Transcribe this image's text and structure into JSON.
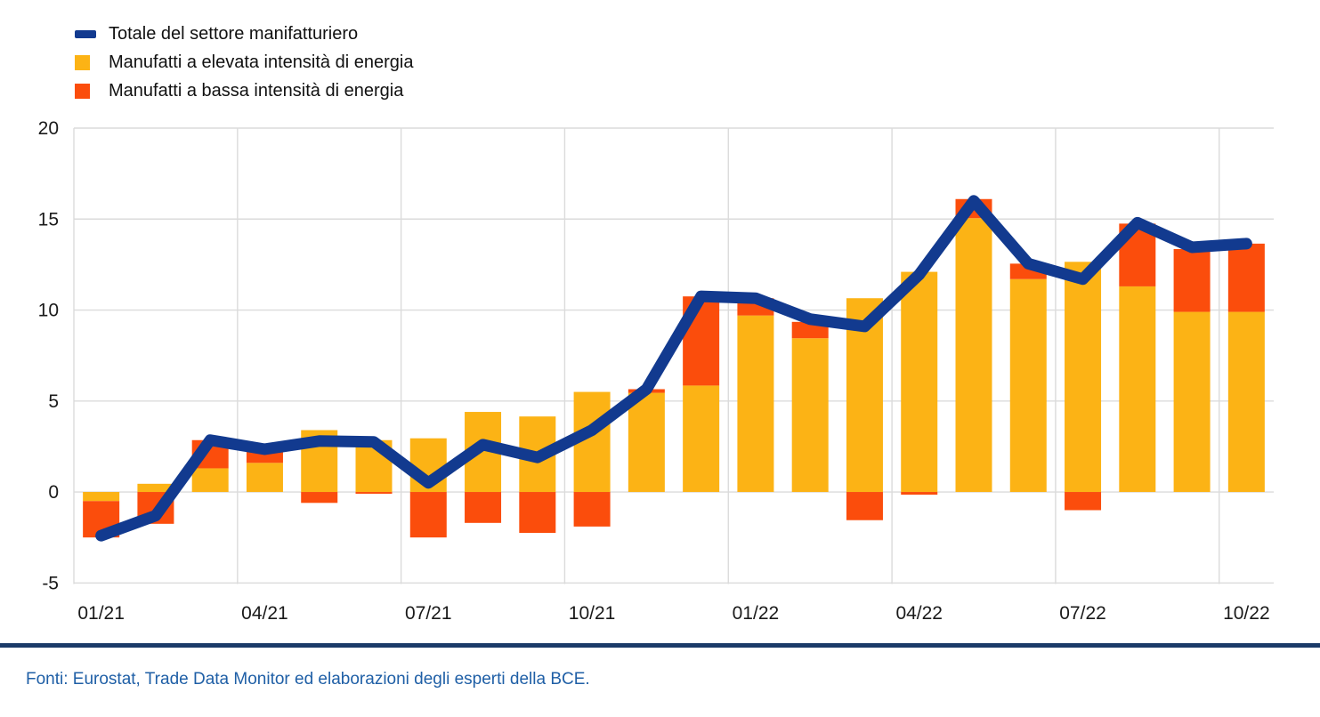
{
  "chart_data": {
    "type": "bar",
    "subtype": "stacked-bar-with-total-line",
    "title": "",
    "xlabel": "",
    "ylabel": "",
    "categories": [
      "01/21",
      "02/21",
      "03/21",
      "04/21",
      "05/21",
      "06/21",
      "07/21",
      "08/21",
      "09/21",
      "10/21",
      "11/21",
      "12/21",
      "01/22",
      "02/22",
      "03/22",
      "04/22",
      "05/22",
      "06/22",
      "07/22",
      "08/22",
      "09/22",
      "10/22"
    ],
    "x_tick_labels": [
      "01/21",
      "04/21",
      "07/21",
      "10/21",
      "01/22",
      "04/22",
      "07/22",
      "10/22"
    ],
    "x_tick_every": 3,
    "series": [
      {
        "name": "Manufatti a elevata intensità di energia",
        "kind": "bar",
        "color": "#FCB315",
        "values": [
          -0.5,
          0.45,
          1.3,
          1.6,
          3.4,
          2.85,
          2.95,
          4.4,
          4.15,
          5.5,
          5.45,
          5.85,
          9.7,
          8.45,
          10.65,
          12.1,
          15.05,
          11.7,
          12.65,
          11.3,
          9.9,
          9.9
        ]
      },
      {
        "name": "Manufatti a bassa intensità di energia",
        "kind": "bar",
        "color": "#FB4D0C",
        "values": [
          -2.0,
          -1.75,
          1.55,
          0.65,
          -0.6,
          -0.1,
          -2.5,
          -1.7,
          -2.25,
          -1.9,
          0.2,
          4.9,
          0.95,
          0.9,
          -1.55,
          -0.15,
          1.05,
          0.85,
          -1.0,
          3.45,
          3.45,
          3.75
        ]
      },
      {
        "name": "Totale del settore manifatturiero",
        "kind": "line",
        "color": "#123A8F",
        "values": [
          -2.4,
          -1.3,
          2.85,
          2.35,
          2.8,
          2.75,
          0.5,
          2.6,
          1.9,
          3.4,
          5.65,
          10.75,
          10.65,
          9.5,
          9.1,
          11.95,
          16.0,
          12.55,
          11.7,
          14.8,
          13.45,
          13.65
        ]
      }
    ],
    "ylim": [
      -5,
      20
    ],
    "yticks": [
      -5,
      0,
      5,
      10,
      15,
      20
    ],
    "grid": true,
    "legend_position": "top-left"
  },
  "legend": {
    "items": [
      {
        "label": "Totale del settore manifatturiero",
        "marker": "line",
        "color": "#123A8F"
      },
      {
        "label": "Manufatti a elevata intensità di energia",
        "marker": "box",
        "color": "#FCB315"
      },
      {
        "label": "Manufatti a bassa intensità di energia",
        "marker": "box",
        "color": "#FB4D0C"
      }
    ]
  },
  "footer": {
    "source_text": "Fonti: Eurostat, Trade Data Monitor ed elaborazioni degli esperti della BCE."
  },
  "colors": {
    "background": "#FFFFFF",
    "gridline": "#DBDBDB",
    "tick_text": "#1A1A1A",
    "footer_rule": "#1A3A68",
    "footer_text": "#1F5FA6"
  }
}
